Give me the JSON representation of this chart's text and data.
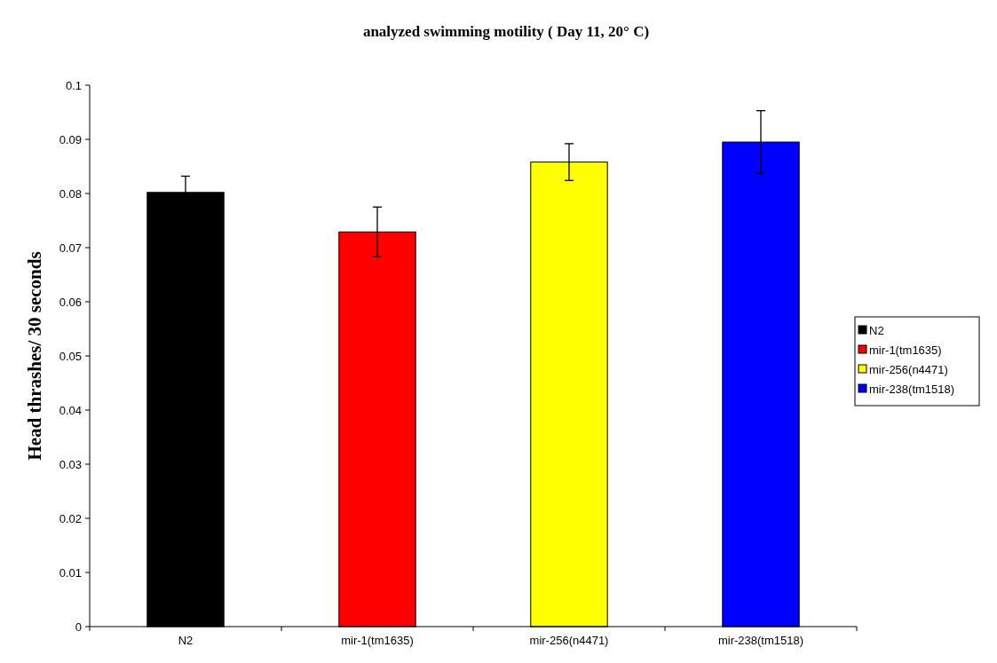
{
  "chart_data": {
    "type": "bar",
    "title": "analyzed swimming motility ( Day 11, 20° C)",
    "ylabel": "Head thrashes/ 30 seconds",
    "categories": [
      "N2",
      "mir-1(tm1635)",
      "mir-256(n4471)",
      "mir-238(tm1518)"
    ],
    "series": [
      {
        "name": "N2",
        "color": "#000000",
        "values": [
          0.0802,
          null,
          null,
          null
        ],
        "errors": [
          0.003,
          null,
          null,
          null
        ]
      },
      {
        "name": "mir-1(tm1635)",
        "color": "#ff0000",
        "values": [
          null,
          0.0729,
          null,
          null
        ],
        "errors": [
          null,
          0.0046,
          null,
          null
        ]
      },
      {
        "name": "mir-256(n4471)",
        "color": "#ffff00",
        "values": [
          null,
          null,
          0.0858,
          null
        ],
        "errors": [
          null,
          null,
          0.0034,
          null
        ]
      },
      {
        "name": "mir-238(tm1518)",
        "color": "#0000ff",
        "values": [
          null,
          null,
          null,
          0.0895
        ],
        "errors": [
          null,
          null,
          null,
          0.0058
        ]
      }
    ],
    "ylim": [
      0,
      0.1
    ],
    "yticks": [
      0,
      0.01,
      0.02,
      0.03,
      0.04,
      0.05,
      0.06,
      0.07,
      0.08,
      0.09,
      0.1
    ],
    "grid": false,
    "legend": "right"
  }
}
